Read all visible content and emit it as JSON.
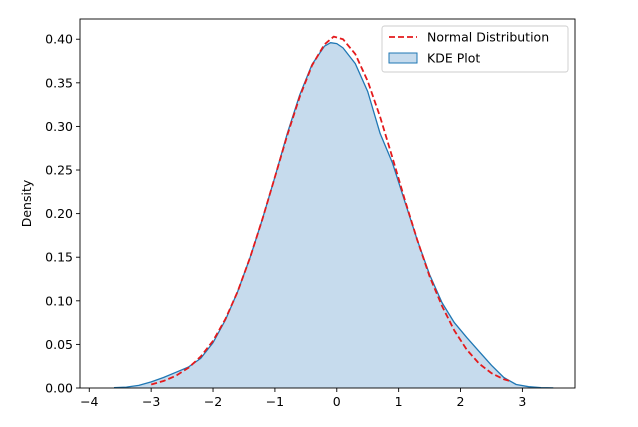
{
  "chart_data": {
    "type": "area",
    "title": "",
    "xlabel": "",
    "ylabel": "Density",
    "xlim": [
      -4.15,
      3.85
    ],
    "ylim": [
      0,
      0.4232
    ],
    "xticks": [
      -4,
      -3,
      -2,
      -1,
      0,
      1,
      2,
      3
    ],
    "yticks": [
      0.0,
      0.05,
      0.1,
      0.15,
      0.2,
      0.25,
      0.3,
      0.35,
      0.4
    ],
    "xtick_labels": [
      "−4",
      "−3",
      "−2",
      "−1",
      "0",
      "1",
      "2",
      "3"
    ],
    "ytick_labels": [
      "0.00",
      "0.05",
      "0.10",
      "0.15",
      "0.20",
      "0.25",
      "0.30",
      "0.35",
      "0.40"
    ],
    "grid": false,
    "legend_position": "top-right",
    "series": [
      {
        "name": "Normal Distribution",
        "kind": "line",
        "style": "dashed",
        "color": "#e41a1c",
        "x": [
          -3.0,
          -2.8,
          -2.6,
          -2.4,
          -2.2,
          -2.0,
          -1.8,
          -1.6,
          -1.4,
          -1.2,
          -1.0,
          -0.8,
          -0.6,
          -0.4,
          -0.2,
          -0.05,
          0.1,
          0.3,
          0.5,
          0.7,
          0.9,
          1.1,
          1.3,
          1.5,
          1.7,
          1.9,
          2.1,
          2.3,
          2.5,
          2.7,
          2.8
        ],
        "y": [
          0.004,
          0.008,
          0.014,
          0.023,
          0.036,
          0.054,
          0.079,
          0.111,
          0.15,
          0.194,
          0.242,
          0.29,
          0.334,
          0.37,
          0.394,
          0.403,
          0.4,
          0.383,
          0.352,
          0.311,
          0.264,
          0.216,
          0.17,
          0.128,
          0.094,
          0.066,
          0.044,
          0.028,
          0.017,
          0.01,
          0.008
        ]
      },
      {
        "name": "KDE Plot",
        "kind": "area",
        "color": "#1f77b4",
        "fill": "#c6dbed",
        "x": [
          -3.6,
          -3.4,
          -3.2,
          -3.0,
          -2.8,
          -2.6,
          -2.4,
          -2.2,
          -2.0,
          -1.8,
          -1.6,
          -1.4,
          -1.2,
          -1.0,
          -0.8,
          -0.6,
          -0.4,
          -0.2,
          -0.1,
          0.0,
          0.1,
          0.3,
          0.5,
          0.7,
          0.9,
          1.1,
          1.3,
          1.5,
          1.7,
          1.9,
          2.1,
          2.3,
          2.5,
          2.7,
          2.9,
          3.1,
          3.3,
          3.5
        ],
        "y": [
          0.0005,
          0.001,
          0.003,
          0.007,
          0.012,
          0.018,
          0.024,
          0.034,
          0.052,
          0.078,
          0.111,
          0.15,
          0.194,
          0.242,
          0.292,
          0.336,
          0.371,
          0.392,
          0.396,
          0.395,
          0.39,
          0.372,
          0.34,
          0.292,
          0.258,
          0.214,
          0.17,
          0.13,
          0.098,
          0.075,
          0.058,
          0.042,
          0.026,
          0.012,
          0.004,
          0.0015,
          0.0005,
          0.0001
        ]
      }
    ]
  }
}
